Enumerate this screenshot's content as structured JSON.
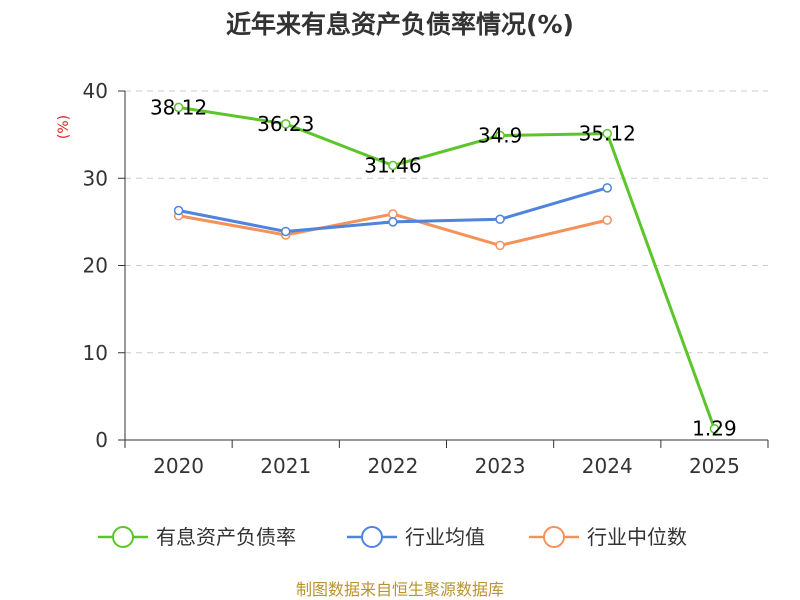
{
  "chart_data": {
    "type": "line",
    "title": "近年来有息资产负债率情况(%)",
    "ylabel": "(%)",
    "xlabel": "",
    "categories": [
      "2020",
      "2021",
      "2022",
      "2023",
      "2024",
      "2025"
    ],
    "ylim": [
      0,
      40
    ],
    "yticks": [
      0,
      10,
      20,
      30,
      40
    ],
    "grid": "horizontal-dashed",
    "legend": "bottom",
    "series": [
      {
        "name": "有息资产负债率",
        "color": "#5cc52c",
        "values": [
          38.12,
          36.23,
          31.46,
          34.9,
          35.12,
          1.29
        ],
        "labels": [
          "38.12",
          "36.23",
          "31.46",
          "34.9",
          "35.12",
          "1.29"
        ]
      },
      {
        "name": "行业均值",
        "color": "#4f83dc",
        "values": [
          26.3,
          23.9,
          25.0,
          25.3,
          28.9,
          null
        ]
      },
      {
        "name": "行业中位数",
        "color": "#f5915a",
        "values": [
          25.7,
          23.5,
          25.9,
          22.3,
          25.2,
          null
        ]
      }
    ]
  },
  "source": "制图数据来自恒生聚源数据库"
}
